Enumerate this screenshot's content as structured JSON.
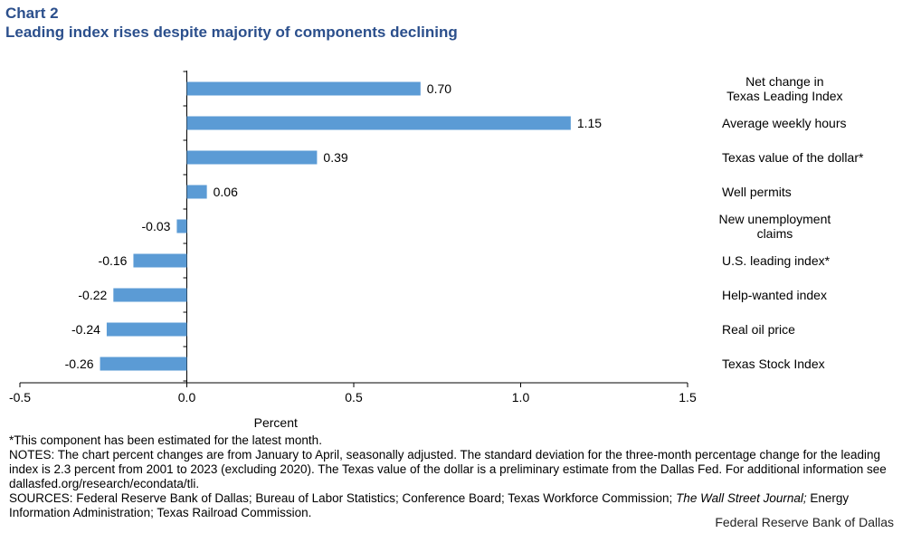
{
  "header": {
    "chart_number": "Chart 2",
    "title": "Leading index rises despite majority of components declining"
  },
  "chart_data": {
    "type": "bar",
    "orientation": "horizontal",
    "title": "Leading index rises despite majority of components declining",
    "xlabel": "Percent",
    "ylabel": "",
    "xlim": [
      -0.5,
      1.5
    ],
    "x_ticks": [
      -0.5,
      0.0,
      0.5,
      1.0,
      1.5
    ],
    "x_tick_labels": [
      "-0.5",
      "0.0",
      "0.5",
      "1.0",
      "1.5"
    ],
    "grid": false,
    "bar_color": "#5b9bd5",
    "categories": [
      [
        "Net change in",
        "Texas Leading Index"
      ],
      [
        "Average weekly hours"
      ],
      [
        "Texas value of the dollar*"
      ],
      [
        "Well permits"
      ],
      [
        "New unemployment",
        "claims"
      ],
      [
        "U.S. leading index*"
      ],
      [
        "Help-wanted index"
      ],
      [
        "Real oil price"
      ],
      [
        "Texas Stock Index"
      ]
    ],
    "values": [
      0.7,
      1.15,
      0.39,
      0.06,
      -0.03,
      -0.16,
      -0.22,
      -0.24,
      -0.26
    ],
    "value_labels": [
      "0.70",
      "1.15",
      "0.39",
      "0.06",
      "-0.03",
      "-0.16",
      "-0.22",
      "-0.24",
      "-0.26"
    ]
  },
  "notes": {
    "footnote": "*This component has been estimated for the latest month.",
    "notes_text": "NOTES: The chart percent changes are from January to April, seasonally adjusted. The standard deviation for the three-month percentage change for the leading index is 2.3 percent from 2001 to 2023 (excluding 2020). The Texas value of the dollar is a preliminary estimate from the Dallas Fed. For additional information see dallasfed.org/research/econdata/tli.",
    "sources_prefix": "SOURCES: Federal Reserve Bank of Dallas; Bureau of Labor Statistics; Conference Board; Texas Workforce Commission; ",
    "sources_italic": "The Wall Street Journal;",
    "sources_suffix": " Energy Information Administration; Texas Railroad Commission."
  },
  "credit": "Federal Reserve Bank of Dallas"
}
